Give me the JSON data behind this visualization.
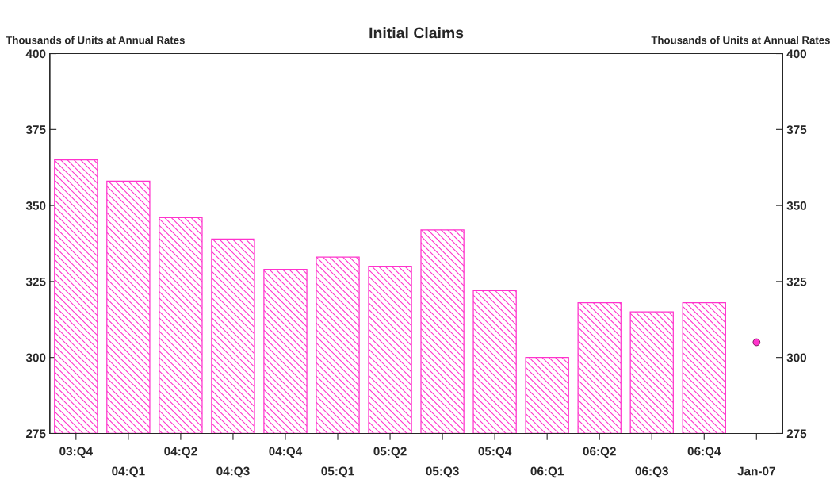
{
  "chart_data": {
    "type": "bar",
    "title": "Initial Claims",
    "ylabel": "Thousands of Units at Annual Rates",
    "y2label": "Thousands of Units at Annual Rates",
    "categories": [
      "03:Q4",
      "04:Q1",
      "04:Q2",
      "04:Q3",
      "04:Q4",
      "05:Q1",
      "05:Q2",
      "05:Q3",
      "05:Q4",
      "06:Q1",
      "06:Q2",
      "06:Q3",
      "06:Q4",
      "Jan-07"
    ],
    "series": [
      {
        "color": "#ff33cc",
        "values": [
          365,
          358,
          346,
          339,
          329,
          333,
          330,
          342,
          322,
          300,
          318,
          315,
          318,
          null
        ]
      },
      {
        "type": "scatter",
        "color": "#ff33cc",
        "values": [
          null,
          null,
          null,
          null,
          null,
          null,
          null,
          null,
          null,
          null,
          null,
          null,
          null,
          305
        ]
      }
    ],
    "ylim": [
      275,
      400
    ],
    "yticks": [
      275,
      300,
      325,
      350,
      375,
      400
    ],
    "y2lim": [
      275,
      400
    ],
    "y2ticks": [
      275,
      300,
      325,
      350,
      375,
      400
    ],
    "grid": false,
    "legend": false,
    "marker": "circle"
  }
}
